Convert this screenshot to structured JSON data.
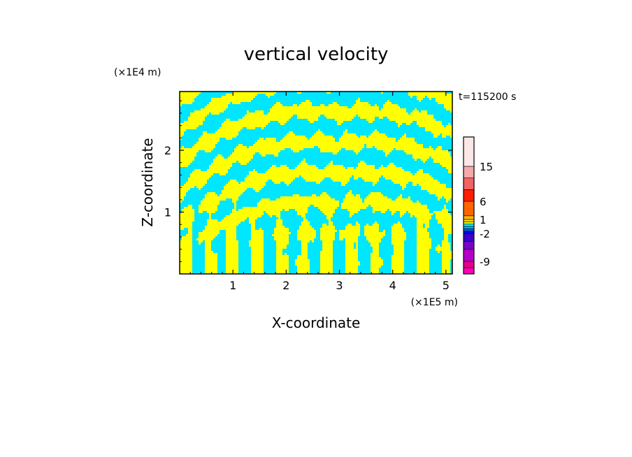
{
  "chart_data": {
    "type": "heatmap",
    "title": "vertical velocity",
    "xlabel": "X-coordinate",
    "ylabel": "Z-coordinate",
    "x_unit": "(×1E5 m)",
    "y_unit": "(×1E4 m)",
    "time_label": "t=115200 s",
    "xlim": [
      0,
      5.12
    ],
    "ylim": [
      0,
      2.95
    ],
    "x_ticks": [
      1,
      2,
      3,
      4,
      5
    ],
    "y_ticks": [
      1,
      2
    ],
    "colorbar": {
      "tick_labels": [
        "15",
        "6",
        "1",
        "-2",
        "-9"
      ],
      "tick_values": [
        15,
        6,
        1,
        -2,
        -9
      ],
      "levels": [
        {
          "range": [
            -15,
            -12
          ],
          "color": "#ff00b4"
        },
        {
          "range": [
            -12,
            -9
          ],
          "color": "#e6008c"
        },
        {
          "range": [
            -9,
            -6
          ],
          "color": "#b400c8"
        },
        {
          "range": [
            -6,
            -4
          ],
          "color": "#7800c8"
        },
        {
          "range": [
            -4,
            -2
          ],
          "color": "#3c00c8"
        },
        {
          "range": [
            -2,
            -1.5
          ],
          "color": "#0000ff"
        },
        {
          "range": [
            -1.5,
            -1
          ],
          "color": "#0064ff"
        },
        {
          "range": [
            -1,
            -0.5
          ],
          "color": "#00b4ff"
        },
        {
          "range": [
            -0.5,
            0
          ],
          "color": "#00e6ff"
        },
        {
          "range": [
            0,
            0.5
          ],
          "color": "#ffff00"
        },
        {
          "range": [
            0.5,
            1
          ],
          "color": "#ffdc00"
        },
        {
          "range": [
            1,
            2
          ],
          "color": "#ffb400"
        },
        {
          "range": [
            2,
            6
          ],
          "color": "#ff6400"
        },
        {
          "range": [
            6,
            9
          ],
          "color": "#ff1e00"
        },
        {
          "range": [
            9,
            12
          ],
          "color": "#f06464"
        },
        {
          "range": [
            12,
            15
          ],
          "color": "#f5aaaa"
        },
        {
          "range": [
            15,
            20
          ],
          "color": "#fce6e6"
        }
      ]
    },
    "field_colors": {
      "negative": "#00e6ff",
      "positive": "#ffff00"
    },
    "grid": false,
    "legend": "colorbar-right"
  }
}
